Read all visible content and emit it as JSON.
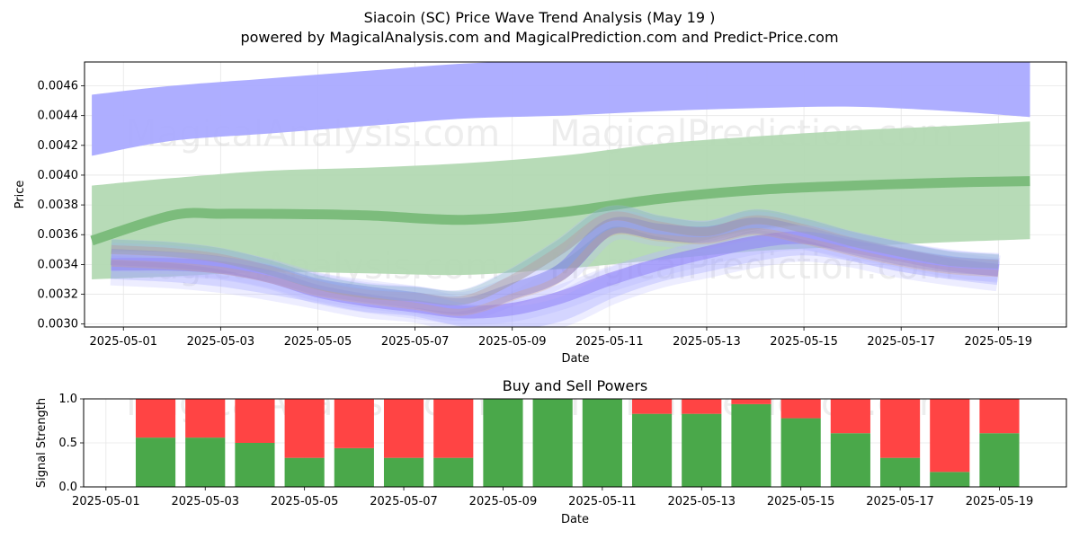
{
  "title_line1": "Siacoin (SC) Price Wave Trend Analysis (May 19 )",
  "title_line2": "powered by MagicalAnalysis.com and MagicalPrediction.com and Predict-Price.com",
  "watermarks": [
    "MagicalAnalysis.com",
    "MagicalPrediction.com"
  ],
  "colors": {
    "blue_band": "#aaaaff",
    "green_band": "#b3d9b3",
    "green_line": "#78bb78",
    "buy": "#4aa84a",
    "sell": "#ff4444"
  },
  "chart_data": [
    {
      "type": "area",
      "title": "",
      "xlabel": "Date",
      "ylabel": "Price",
      "ylim": [
        0.00298,
        0.00476
      ],
      "x_range_days": [
        -0.8,
        19.4
      ],
      "x_ticks": [
        {
          "day": 0,
          "label": "2025-05-01"
        },
        {
          "day": 2,
          "label": "2025-05-03"
        },
        {
          "day": 4,
          "label": "2025-05-05"
        },
        {
          "day": 6,
          "label": "2025-05-07"
        },
        {
          "day": 8,
          "label": "2025-05-09"
        },
        {
          "day": 10,
          "label": "2025-05-11"
        },
        {
          "day": 12,
          "label": "2025-05-13"
        },
        {
          "day": 14,
          "label": "2025-05-15"
        },
        {
          "day": 16,
          "label": "2025-05-17"
        },
        {
          "day": 18,
          "label": "2025-05-19"
        }
      ],
      "y_ticks": [
        {
          "value": 0.003,
          "label": "0.0030"
        },
        {
          "value": 0.0032,
          "label": "0.0032"
        },
        {
          "value": 0.0034,
          "label": "0.0034"
        },
        {
          "value": 0.0036,
          "label": "0.0036"
        },
        {
          "value": 0.0038,
          "label": "0.0038"
        },
        {
          "value": 0.004,
          "label": "0.0040"
        },
        {
          "value": 0.0042,
          "label": "0.0042"
        },
        {
          "value": 0.0044,
          "label": "0.0044"
        },
        {
          "value": 0.0046,
          "label": "0.0046"
        }
      ],
      "grid": true,
      "bands": [
        {
          "name": "long wave band (blue)",
          "x": [
            -0.65,
            1,
            3,
            5,
            7,
            9,
            11,
            13,
            15,
            17,
            18.65
          ],
          "lower": [
            0.00413,
            0.00423,
            0.00428,
            0.00433,
            0.00438,
            0.0044,
            0.00443,
            0.00445,
            0.00446,
            0.00443,
            0.00439
          ],
          "upper": [
            0.00454,
            0.0046,
            0.00465,
            0.0047,
            0.00475,
            0.00477,
            0.00478,
            0.00478,
            0.00478,
            0.00478,
            0.00478
          ]
        },
        {
          "name": "mid wave band (green)",
          "x": [
            -0.65,
            1,
            3,
            5,
            7,
            9,
            11,
            13,
            15,
            17,
            18.65
          ],
          "lower": [
            0.0033,
            0.00332,
            0.00335,
            0.00334,
            0.00333,
            0.00337,
            0.00343,
            0.00349,
            0.00352,
            0.00355,
            0.00357
          ],
          "upper": [
            0.00393,
            0.00398,
            0.00403,
            0.00405,
            0.00408,
            0.00413,
            0.00421,
            0.00426,
            0.0043,
            0.00433,
            0.00436
          ]
        }
      ],
      "series": [
        {
          "name": "trend line (green)",
          "x": [
            -0.65,
            1,
            2,
            3,
            5,
            7,
            9,
            11,
            13,
            15,
            17,
            18.65
          ],
          "values": [
            0.00356,
            0.00373,
            0.00374,
            0.00374,
            0.00373,
            0.0037,
            0.00375,
            0.00384,
            0.0039,
            0.00393,
            0.00395,
            0.00396
          ]
        },
        {
          "name": "short wave 1",
          "x": [
            -0.25,
            1,
            2,
            3,
            4,
            5,
            6,
            7,
            8,
            9,
            10,
            11,
            12,
            13,
            14,
            15,
            16,
            17,
            18
          ],
          "values": [
            0.00345,
            0.00343,
            0.0034,
            0.00334,
            0.00325,
            0.0032,
            0.00316,
            0.00312,
            0.00322,
            0.00335,
            0.00365,
            0.00362,
            0.0036,
            0.00366,
            0.0036,
            0.00352,
            0.00345,
            0.0034,
            0.00338
          ]
        },
        {
          "name": "short wave 2",
          "x": [
            -0.25,
            1,
            2,
            3,
            4,
            5,
            6,
            7,
            8,
            9,
            10,
            11,
            12,
            13,
            14,
            15,
            16,
            17,
            18
          ],
          "values": [
            0.0034,
            0.0034,
            0.00338,
            0.00332,
            0.00322,
            0.00316,
            0.00312,
            0.00308,
            0.0031,
            0.00318,
            0.0033,
            0.0034,
            0.00348,
            0.00355,
            0.00358,
            0.00352,
            0.00346,
            0.0034,
            0.00336
          ]
        },
        {
          "name": "short wave 3",
          "x": [
            -0.25,
            1,
            2,
            3,
            4,
            5,
            6,
            7,
            8,
            9,
            10,
            11,
            12,
            13,
            14,
            15,
            16,
            17,
            18
          ],
          "values": [
            0.0035,
            0.00348,
            0.00344,
            0.00336,
            0.00326,
            0.0032,
            0.00318,
            0.00316,
            0.0033,
            0.0035,
            0.00372,
            0.00366,
            0.00362,
            0.0037,
            0.00364,
            0.00355,
            0.00348,
            0.00342,
            0.0034
          ]
        },
        {
          "name": "short wave 4",
          "x": [
            -0.25,
            1,
            2,
            3,
            4,
            5,
            6,
            7,
            8,
            9,
            10,
            11,
            12,
            13,
            14,
            15,
            16,
            17,
            18
          ],
          "values": [
            0.00338,
            0.00336,
            0.00333,
            0.00328,
            0.00322,
            0.00316,
            0.00313,
            0.00306,
            0.00304,
            0.0031,
            0.00325,
            0.00336,
            0.00343,
            0.0035,
            0.00354,
            0.0035,
            0.00343,
            0.00338,
            0.00334
          ]
        }
      ]
    },
    {
      "type": "bar",
      "title": "Buy and Sell Powers",
      "xlabel": "Date",
      "ylabel": "Signal Strength",
      "ylim": [
        0,
        1
      ],
      "x_range_days": [
        -0.45,
        19.35
      ],
      "x_ticks": [
        {
          "day": 0,
          "label": "2025-05-01"
        },
        {
          "day": 2,
          "label": "2025-05-03"
        },
        {
          "day": 4,
          "label": "2025-05-05"
        },
        {
          "day": 6,
          "label": "2025-05-07"
        },
        {
          "day": 8,
          "label": "2025-05-09"
        },
        {
          "day": 10,
          "label": "2025-05-11"
        },
        {
          "day": 12,
          "label": "2025-05-13"
        },
        {
          "day": 14,
          "label": "2025-05-15"
        },
        {
          "day": 16,
          "label": "2025-05-17"
        },
        {
          "day": 18,
          "label": "2025-05-19"
        }
      ],
      "y_ticks": [
        {
          "value": 0.0,
          "label": "0.0"
        },
        {
          "value": 0.5,
          "label": "0.5"
        },
        {
          "value": 1.0,
          "label": "1.0"
        }
      ],
      "grid": true,
      "categories_day": [
        1,
        2,
        3,
        4,
        5,
        6,
        7,
        8,
        9,
        10,
        11,
        12,
        13,
        14,
        15,
        16,
        17,
        18
      ],
      "series": [
        {
          "name": "Buy",
          "values": [
            0.56,
            0.56,
            0.5,
            0.33,
            0.44,
            0.33,
            0.33,
            1.0,
            1.0,
            1.0,
            0.83,
            0.83,
            0.94,
            0.78,
            0.61,
            0.33,
            0.17,
            0.61
          ]
        },
        {
          "name": "Sell",
          "values": [
            0.44,
            0.44,
            0.5,
            0.67,
            0.56,
            0.67,
            0.67,
            0.0,
            0.0,
            0.0,
            0.17,
            0.17,
            0.06,
            0.22,
            0.39,
            0.67,
            0.83,
            0.39
          ]
        }
      ]
    }
  ]
}
